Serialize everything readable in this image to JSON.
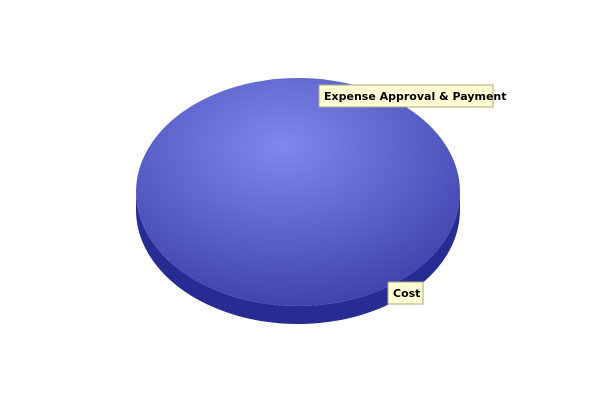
{
  "chart_data": {
    "type": "pie",
    "style": "3d",
    "series": [
      {
        "values": [
          100
        ],
        "labels": [
          "Expense Approval & Payment"
        ]
      }
    ],
    "legend_labels": [
      "Expense Approval & Payment",
      "Cost"
    ],
    "colors": {
      "slice_top_light": "#8088ee",
      "slice_top_dark": "#3a40a8",
      "slice_side": "#262c92",
      "label_bg": "#ffffd6",
      "label_border": "#a8a878"
    }
  }
}
